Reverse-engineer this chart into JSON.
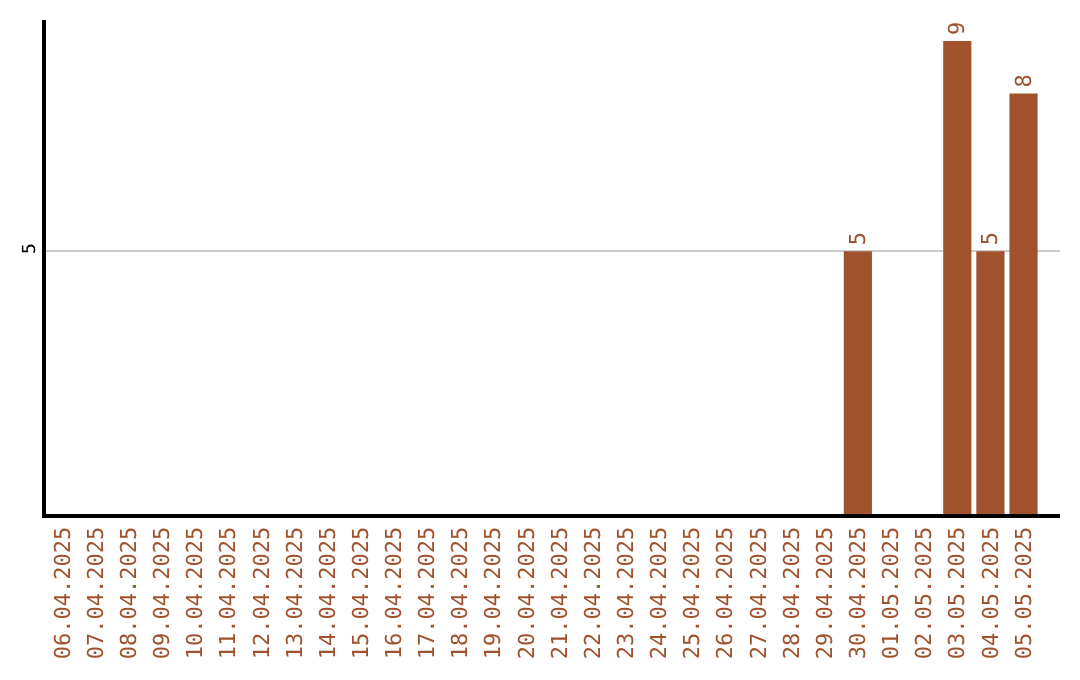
{
  "chart_data": {
    "type": "bar",
    "categories": [
      "06.04.2025",
      "07.04.2025",
      "08.04.2025",
      "09.04.2025",
      "10.04.2025",
      "11.04.2025",
      "12.04.2025",
      "13.04.2025",
      "14.04.2025",
      "15.04.2025",
      "16.04.2025",
      "17.04.2025",
      "18.04.2025",
      "19.04.2025",
      "20.04.2025",
      "21.04.2025",
      "22.04.2025",
      "23.04.2025",
      "24.04.2025",
      "25.04.2025",
      "26.04.2025",
      "27.04.2025",
      "28.04.2025",
      "29.04.2025",
      "30.04.2025",
      "01.05.2025",
      "02.05.2025",
      "03.05.2025",
      "04.05.2025",
      "05.05.2025"
    ],
    "values": [
      null,
      null,
      null,
      null,
      null,
      null,
      null,
      null,
      null,
      null,
      null,
      null,
      null,
      null,
      null,
      null,
      null,
      null,
      null,
      null,
      null,
      null,
      null,
      null,
      5,
      null,
      null,
      9,
      5,
      8
    ],
    "color": "#a0522d",
    "ylim": [
      0,
      9.4
    ],
    "yticks": [
      5
    ],
    "grid": "y",
    "data_labels": true
  }
}
